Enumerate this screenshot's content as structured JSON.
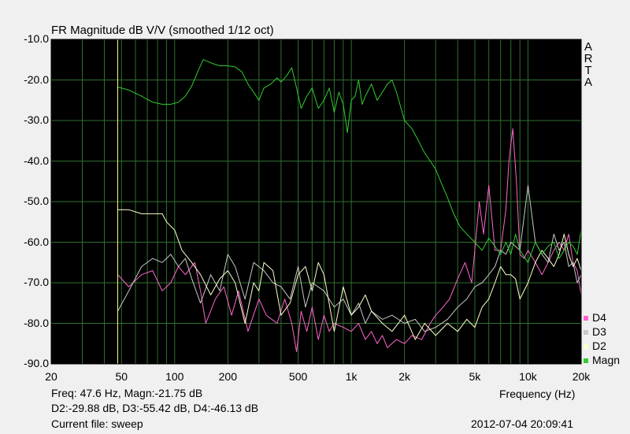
{
  "chart_data": {
    "type": "line",
    "title": "FR Magnitude dB V/V (smoothed 1/12 oct)",
    "xlabel": "Frequency (Hz)",
    "xscale": "log",
    "xlim": [
      20,
      20000
    ],
    "ylim": [
      -90,
      -10
    ],
    "x_ticks": [
      "20",
      "50",
      "100",
      "200",
      "500",
      "1k",
      "2k",
      "5k",
      "10k",
      "20k"
    ],
    "x_tick_values": [
      20,
      50,
      100,
      200,
      500,
      1000,
      2000,
      5000,
      10000,
      20000
    ],
    "y_ticks": [
      "-10.0",
      "-20.0",
      "-30.0",
      "-40.0",
      "-50.0",
      "-60.0",
      "-70.0",
      "-80.0",
      "-90.0"
    ],
    "y_tick_values": [
      -10,
      -20,
      -30,
      -40,
      -50,
      -60,
      -70,
      -80,
      -90
    ],
    "grid": true,
    "background": "#000000",
    "grid_color": "#2f6f2f",
    "cursor": {
      "x": 47.6,
      "color": "#ffff80"
    },
    "legend_position": "bottom-right",
    "series": [
      {
        "name": "D4",
        "color": "#ff66cc",
        "x": [
          47.6,
          55,
          65,
          75,
          85,
          95,
          105,
          115,
          130,
          140,
          150,
          170,
          190,
          210,
          230,
          260,
          300,
          330,
          380,
          420,
          460,
          490,
          520,
          560,
          600,
          650,
          700,
          750,
          800,
          900,
          1000,
          1100,
          1200,
          1300,
          1400,
          1500,
          1600,
          1800,
          2000,
          2200,
          2500,
          2800,
          3000,
          3300,
          3600,
          4000,
          4400,
          4800,
          5000,
          5300,
          5600,
          6000,
          6500,
          7000,
          7500,
          7800,
          8200,
          8600,
          9000,
          9500,
          10000,
          11000,
          12000,
          13000,
          14000,
          15000,
          16000,
          17000,
          18000,
          19000,
          20000
        ],
        "y": [
          -68,
          -71,
          -68,
          -67,
          -72,
          -70,
          -66,
          -68,
          -65,
          -72,
          -80,
          -74,
          -71,
          -78,
          -72,
          -82,
          -74,
          -78,
          -80,
          -74,
          -80,
          -87,
          -77,
          -82,
          -76,
          -84,
          -78,
          -82,
          -80,
          -81,
          -82,
          -80,
          -84,
          -82,
          -85,
          -83,
          -86,
          -84,
          -85,
          -83,
          -84,
          -80,
          -78,
          -76,
          -74,
          -69,
          -65,
          -70,
          -62,
          -50,
          -58,
          -46,
          -62,
          -62,
          -52,
          -40,
          -32,
          -45,
          -63,
          -64,
          -62,
          -65,
          -68,
          -65,
          -62,
          -60,
          -62,
          -58,
          -65,
          -67,
          -73
        ]
      },
      {
        "name": "D3",
        "color": "#c8c8c8",
        "x": [
          47.6,
          55,
          65,
          75,
          85,
          95,
          105,
          115,
          125,
          140,
          160,
          180,
          200,
          220,
          250,
          280,
          320,
          360,
          400,
          450,
          500,
          550,
          600,
          700,
          800,
          900,
          1000,
          1100,
          1200,
          1300,
          1500,
          1700,
          2000,
          2300,
          2600,
          3000,
          3500,
          4000,
          4500,
          5000,
          5500,
          6000,
          6500,
          7000,
          7500,
          8000,
          9000,
          10000,
          11000,
          12000,
          13000,
          14000,
          15000,
          16000,
          17000,
          18000,
          19000,
          20000
        ],
        "y": [
          -77,
          -72,
          -66,
          -64,
          -65,
          -63,
          -66,
          -64,
          -69,
          -75,
          -68,
          -72,
          -63,
          -66,
          -74,
          -65,
          -67,
          -70,
          -71,
          -74,
          -66,
          -76,
          -70,
          -72,
          -76,
          -74,
          -78,
          -75,
          -80,
          -77,
          -79,
          -78,
          -80,
          -79,
          -82,
          -81,
          -79,
          -76,
          -74,
          -71,
          -70,
          -68,
          -66,
          -62,
          -63,
          -60,
          -62,
          -46,
          -60,
          -63,
          -65,
          -58,
          -62,
          -60,
          -66,
          -65,
          -70,
          -68
        ]
      },
      {
        "name": "D2",
        "color": "#ffffcc",
        "x": [
          47.6,
          55,
          65,
          75,
          85,
          90,
          100,
          110,
          125,
          140,
          160,
          180,
          200,
          220,
          250,
          280,
          300,
          320,
          360,
          400,
          450,
          500,
          550,
          600,
          650,
          700,
          800,
          900,
          1000,
          1100,
          1200,
          1300,
          1500,
          1700,
          2000,
          2300,
          2600,
          3000,
          3500,
          4000,
          4500,
          5000,
          5500,
          6000,
          6500,
          7000,
          7500,
          8000,
          8500,
          9000,
          10000,
          11000,
          12000,
          13000,
          14000,
          15000,
          16000,
          17000,
          18000,
          19000,
          20000
        ],
        "y": [
          -52,
          -52,
          -53,
          -53,
          -53,
          -55,
          -57,
          -62,
          -65,
          -68,
          -73,
          -69,
          -67,
          -70,
          -80,
          -70,
          -72,
          -65,
          -67,
          -78,
          -75,
          -68,
          -66,
          -72,
          -65,
          -68,
          -82,
          -71,
          -78,
          -76,
          -73,
          -77,
          -80,
          -82,
          -78,
          -84,
          -80,
          -83,
          -80,
          -82,
          -79,
          -81,
          -76,
          -74,
          -70,
          -66,
          -68,
          -68,
          -69,
          -74,
          -70,
          -65,
          -62,
          -64,
          -66,
          -63,
          -58,
          -63,
          -66,
          -64,
          -67
        ]
      },
      {
        "name": "Magn",
        "color": "#33cc33",
        "x": [
          47.6,
          55,
          65,
          75,
          85,
          95,
          105,
          115,
          125,
          135,
          145,
          155,
          165,
          180,
          200,
          220,
          240,
          260,
          280,
          300,
          320,
          350,
          380,
          400,
          430,
          460,
          490,
          520,
          560,
          600,
          650,
          700,
          750,
          800,
          850,
          900,
          950,
          1000,
          1050,
          1100,
          1150,
          1200,
          1300,
          1400,
          1500,
          1600,
          1700,
          1800,
          2000,
          2200,
          2400,
          2600,
          2800,
          3000,
          3200,
          3500,
          3800,
          4100,
          4500,
          5000,
          5500,
          6000,
          6500,
          7000,
          7500,
          8000,
          8500,
          9000,
          10000,
          11000,
          12000,
          13000,
          14000,
          15000,
          16000,
          17000,
          18000,
          19000,
          20000
        ],
        "y": [
          -21.75,
          -22.5,
          -24,
          -25.5,
          -26,
          -26,
          -25.5,
          -24,
          -21.5,
          -18,
          -15,
          -15.5,
          -16,
          -16.5,
          -16.5,
          -16.8,
          -18,
          -21,
          -23,
          -25,
          -22,
          -21,
          -19.5,
          -20.5,
          -19,
          -17,
          -22,
          -27,
          -24,
          -22,
          -27,
          -25,
          -22,
          -28,
          -23,
          -26,
          -33,
          -25,
          -24,
          -20,
          -26,
          -24,
          -21,
          -25,
          -23,
          -21,
          -20,
          -23,
          -30,
          -32,
          -35,
          -38,
          -40,
          -42,
          -45,
          -49,
          -53,
          -56,
          -58,
          -60,
          -62,
          -59,
          -61,
          -63,
          -60,
          -63,
          -58,
          -62,
          -65,
          -60,
          -63,
          -61,
          -60,
          -64,
          -62,
          -60,
          -61,
          -63,
          -57
        ]
      }
    ]
  },
  "title": "FR Magnitude dB V/V (smoothed 1/12 oct)",
  "brand_letters": [
    "A",
    "R",
    "T",
    "A"
  ],
  "status": {
    "readout_line1": "Freq: 47.6 Hz, Magn:-21.75 dB",
    "readout_line2": "D2:-29.88 dB, D3:-55.42 dB, D4:-46.13 dB",
    "frequency_label": "Frequency (Hz)",
    "current_file": "Current file: sweep",
    "timestamp": "2012-07-04  20:09:41"
  }
}
